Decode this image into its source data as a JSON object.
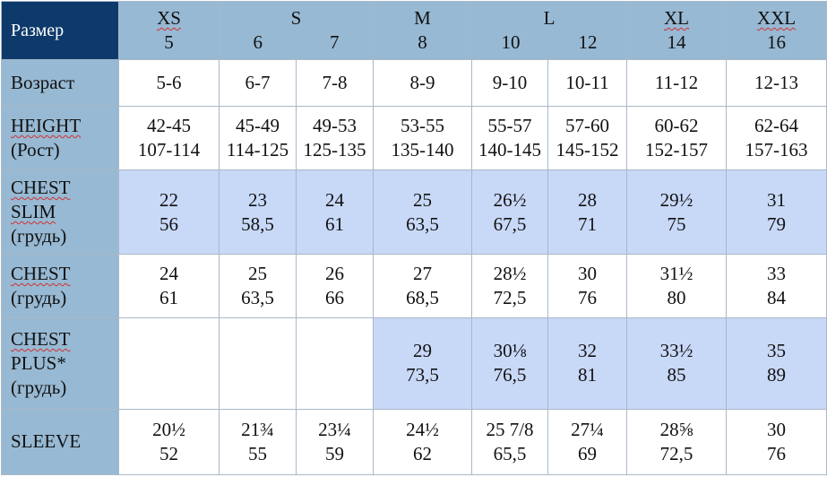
{
  "corner_label": "Размер",
  "header": {
    "xs": {
      "letter": "XS",
      "num": "5"
    },
    "s": {
      "letter": "S",
      "nums": [
        "6",
        "7"
      ]
    },
    "m": {
      "letter": "M",
      "num": "8"
    },
    "l": {
      "letter": "L",
      "nums": [
        "10",
        "12"
      ]
    },
    "xl": {
      "letter": "XL",
      "num": "14"
    },
    "xxl": {
      "letter": "XXL",
      "num": "16"
    }
  },
  "rows": [
    {
      "label": [
        "Возраст"
      ],
      "values": [
        [
          "5-6"
        ],
        [
          "6-7"
        ],
        [
          "7-8"
        ],
        [
          "8-9"
        ],
        [
          "9-10"
        ],
        [
          "10-11"
        ],
        [
          "11-12"
        ],
        [
          "12-13"
        ]
      ]
    },
    {
      "label": [
        "HEIGHT",
        "(Рост)"
      ],
      "values": [
        [
          "42-45",
          "107-114"
        ],
        [
          "45-49",
          "114-125"
        ],
        [
          "49-53",
          "125-135"
        ],
        [
          "53-55",
          "135-140"
        ],
        [
          "55-57",
          "140-145"
        ],
        [
          "57-60",
          "145-152"
        ],
        [
          "60-62",
          "152-157"
        ],
        [
          "62-64",
          "157-163"
        ]
      ]
    },
    {
      "label": [
        "CHEST",
        "SLIM",
        "(грудь)"
      ],
      "values": [
        [
          "22",
          "56"
        ],
        [
          "23",
          "58,5"
        ],
        [
          "24",
          "61"
        ],
        [
          "25",
          "63,5"
        ],
        [
          "26½",
          "67,5"
        ],
        [
          "28",
          "71"
        ],
        [
          "29½",
          "75"
        ],
        [
          "31",
          "79"
        ]
      ]
    },
    {
      "label": [
        "CHEST",
        "(грудь)"
      ],
      "values": [
        [
          "24",
          "61"
        ],
        [
          "25",
          "63,5"
        ],
        [
          "26",
          "66"
        ],
        [
          "27",
          "68,5"
        ],
        [
          "28½",
          "72,5"
        ],
        [
          "30",
          "76"
        ],
        [
          "31½",
          "80"
        ],
        [
          "33",
          "84"
        ]
      ]
    },
    {
      "label": [
        "CHEST",
        "PLUS*",
        "(грудь)"
      ],
      "values": [
        [],
        [],
        [],
        [
          "29",
          "73,5"
        ],
        [
          "30⅛",
          "76,5"
        ],
        [
          "32",
          "81"
        ],
        [
          "33½",
          "85"
        ],
        [
          "35",
          "89"
        ]
      ]
    },
    {
      "label": [
        "SLEEVE"
      ],
      "values": [
        [
          "20½",
          "52"
        ],
        [
          "21¾",
          "55"
        ],
        [
          "23¼",
          "59"
        ],
        [
          "24½",
          "62"
        ],
        [
          "25 7/8",
          "65,5"
        ],
        [
          "27¼",
          "69"
        ],
        [
          "28⅝",
          "72,5"
        ],
        [
          "30",
          "76"
        ]
      ]
    }
  ],
  "colors": {
    "header_bg": "#97b9d3",
    "corner_bg": "#0d3a6b",
    "highlight_bg": "#c8d8f7",
    "border": "#a9b8c8"
  }
}
